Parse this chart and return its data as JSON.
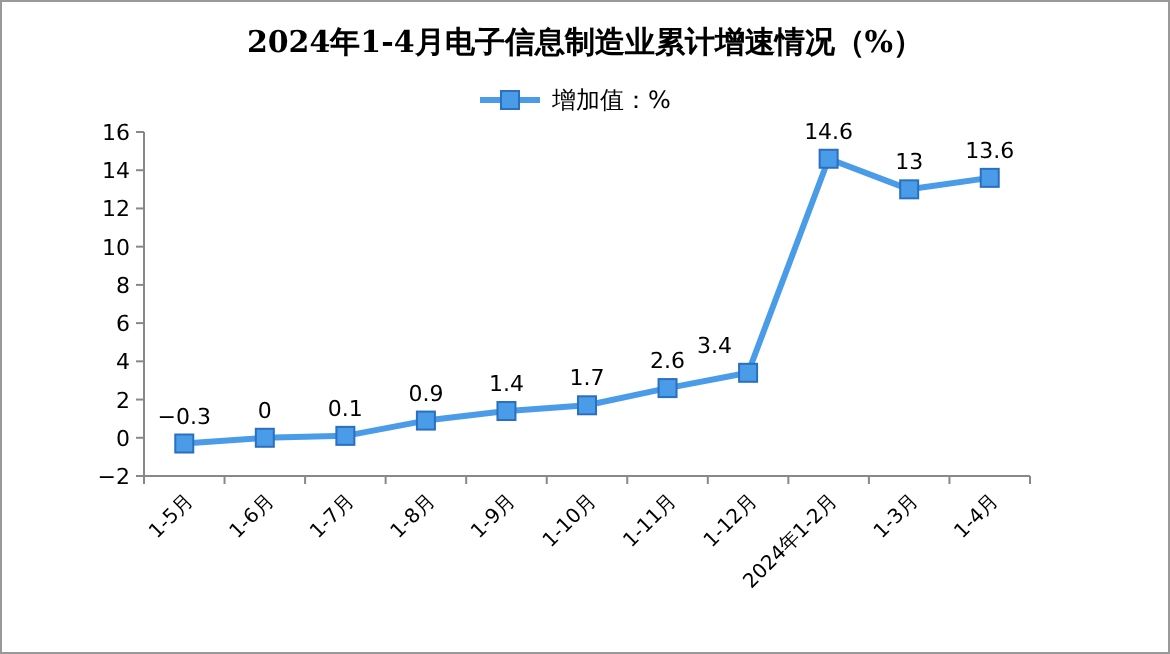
{
  "chart_data": {
    "type": "line",
    "title": "2024年1-4月电子信息制造业累计增速情况（%）",
    "categories": [
      "1-5月",
      "1-6月",
      "1-7月",
      "1-8月",
      "1-9月",
      "1-10月",
      "1-11月",
      "1-12月",
      "2024年1-2月",
      "1-3月",
      "1-4月"
    ],
    "series": [
      {
        "name": "增加值：%",
        "color": "#4a9be8",
        "values": [
          -0.3,
          0,
          0.1,
          0.9,
          1.4,
          1.7,
          2.6,
          3.4,
          14.6,
          13,
          13.6
        ]
      }
    ],
    "ylim": [
      -2,
      16
    ],
    "yticks": [
      -2,
      0,
      2,
      4,
      6,
      8,
      10,
      12,
      14,
      16
    ],
    "data_labels": true,
    "legend": "top",
    "marker": "square",
    "line_style": "solid",
    "grid": false
  }
}
